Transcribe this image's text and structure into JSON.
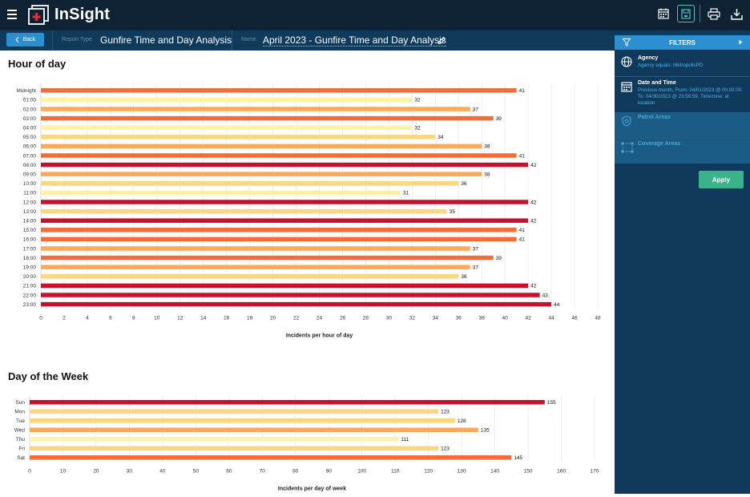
{
  "app": {
    "name": "InSight"
  },
  "toolbar": {
    "icons": [
      "calendar-icon",
      "save-icon",
      "print-icon",
      "download-icon"
    ]
  },
  "subbar": {
    "back_label": "Back",
    "report_type_label": "Report Type",
    "report_type_value": "Gunfire Time and Day Analysis",
    "name_label": "Name",
    "name_value": "April 2023 - Gunfire Time and Day Analysis"
  },
  "filters": {
    "header": "FILTERS",
    "items": [
      {
        "title": "Agency",
        "desc": "Agency equals: MetropolisPD",
        "icon": "globe-icon",
        "enabled": true
      },
      {
        "title": "Date and Time",
        "desc": "Previous month, From: 04/01/2023 @ 00:00:00, To: 04/30/2023 @ 23:59:59, Timezone: at location",
        "icon": "calendar-icon",
        "enabled": true
      },
      {
        "title": "Patrol Areas",
        "desc": "",
        "icon": "badge-icon",
        "enabled": false
      },
      {
        "title": "Coverage Areas",
        "desc": "",
        "icon": "area-icon",
        "enabled": false
      }
    ],
    "apply_label": "Apply"
  },
  "colors": {
    "low": "#fff2a8",
    "mid_low": "#fdd67e",
    "mid": "#fba858",
    "high": "#f36d3a",
    "top": "#c8102e"
  },
  "chart_data": [
    {
      "type": "bar",
      "orientation": "horizontal",
      "title": "Hour of day",
      "xlabel": "Incidents per hour of day",
      "ylabel": "",
      "xlim": [
        0,
        48
      ],
      "xticks": [
        0,
        2,
        4,
        6,
        8,
        10,
        12,
        14,
        16,
        18,
        20,
        22,
        24,
        26,
        28,
        30,
        32,
        34,
        36,
        38,
        40,
        42,
        44,
        46,
        48
      ],
      "grid": true,
      "data_labels": true,
      "categories": [
        "Midnight",
        "01:00",
        "02:00",
        "03:00",
        "04:00",
        "05:00",
        "06:00",
        "07:00",
        "08:00",
        "09:00",
        "10:00",
        "11:00",
        "12:00",
        "13:00",
        "14:00",
        "15:00",
        "16:00",
        "17:00",
        "18:00",
        "19:00",
        "20:00",
        "21:00",
        "22:00",
        "23:00"
      ],
      "values": [
        41,
        32,
        37,
        39,
        32,
        34,
        38,
        41,
        42,
        38,
        36,
        31,
        42,
        35,
        42,
        41,
        41,
        37,
        39,
        37,
        36,
        42,
        43,
        44
      ]
    },
    {
      "type": "bar",
      "orientation": "horizontal",
      "title": "Day of the Week",
      "xlabel": "Incidents per day of week",
      "ylabel": "",
      "xlim": [
        0,
        170
      ],
      "xticks": [
        0,
        10,
        20,
        30,
        40,
        50,
        60,
        70,
        80,
        90,
        100,
        110,
        120,
        130,
        140,
        150,
        160,
        170
      ],
      "grid": true,
      "data_labels": true,
      "categories": [
        "Sun",
        "Mon",
        "Tue",
        "Wed",
        "Thu",
        "Fri",
        "Sat"
      ],
      "values": [
        155,
        123,
        128,
        135,
        111,
        123,
        145
      ]
    }
  ]
}
